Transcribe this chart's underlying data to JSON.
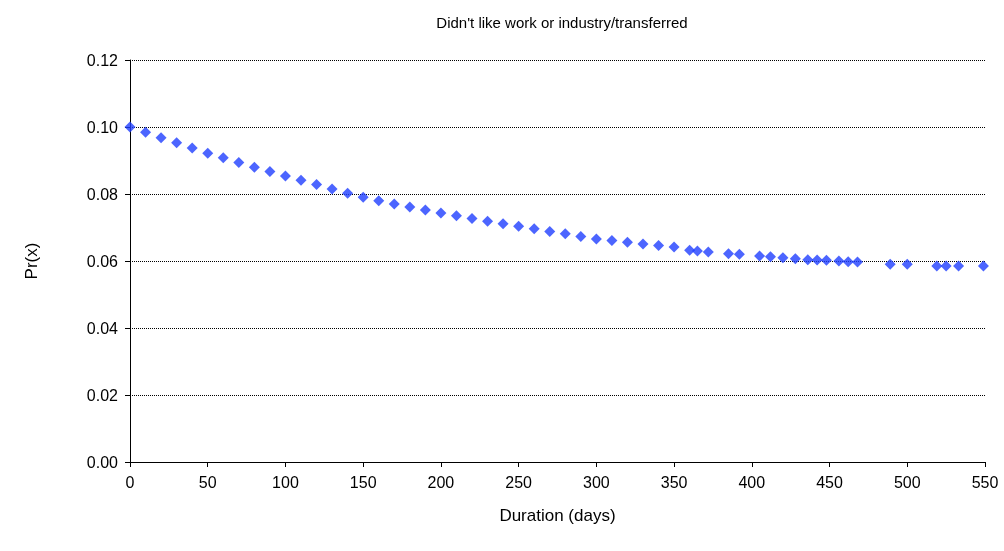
{
  "chart_data": {
    "type": "scatter",
    "title": "Didn't like work or industry/transferred",
    "xlabel": "Duration (days)",
    "ylabel": "Pr(x)",
    "x": [
      0,
      10,
      20,
      30,
      40,
      50,
      60,
      70,
      80,
      90,
      100,
      110,
      120,
      130,
      140,
      150,
      160,
      170,
      180,
      190,
      200,
      210,
      220,
      230,
      240,
      250,
      260,
      270,
      280,
      290,
      300,
      310,
      320,
      330,
      340,
      350,
      360,
      365,
      372,
      385,
      392,
      405,
      412,
      420,
      428,
      436,
      442,
      448,
      456,
      462,
      468,
      489,
      500,
      519,
      525,
      533,
      549
    ],
    "series": [
      {
        "color": "#1f3fff",
        "values": [
          0.1,
          0.0984,
          0.0968,
          0.0953,
          0.0937,
          0.0922,
          0.0908,
          0.0894,
          0.088,
          0.0867,
          0.0854,
          0.0841,
          0.0828,
          0.0815,
          0.0802,
          0.079,
          0.078,
          0.077,
          0.0761,
          0.0752,
          0.0743,
          0.0735,
          0.0727,
          0.0719,
          0.0711,
          0.0704,
          0.0696,
          0.0688,
          0.0681,
          0.0673,
          0.0666,
          0.0661,
          0.0656,
          0.0651,
          0.0646,
          0.0642,
          0.0632,
          0.063,
          0.0627,
          0.0622,
          0.062,
          0.0615,
          0.0613,
          0.061,
          0.0607,
          0.0604,
          0.0603,
          0.0602,
          0.06,
          0.0598,
          0.0597,
          0.059,
          0.059,
          0.0585,
          0.0585,
          0.0585,
          0.0585
        ]
      }
    ],
    "xlim": [
      0,
      550
    ],
    "xticks": [
      0,
      50,
      100,
      150,
      200,
      250,
      300,
      350,
      400,
      450,
      500,
      550
    ],
    "ylim": [
      0,
      0.12
    ],
    "yticks": [
      {
        "value": 0,
        "label": "0.00"
      },
      {
        "value": 0.02,
        "label": "0.02"
      },
      {
        "value": 0.04,
        "label": "0.04"
      },
      {
        "value": 0.06,
        "label": "0.06"
      },
      {
        "value": 0.08,
        "label": "0.08"
      },
      {
        "value": 0.1,
        "label": "0.10"
      },
      {
        "value": 0.12,
        "label": "0.12"
      }
    ],
    "grid": "y",
    "marker": "diamond"
  }
}
